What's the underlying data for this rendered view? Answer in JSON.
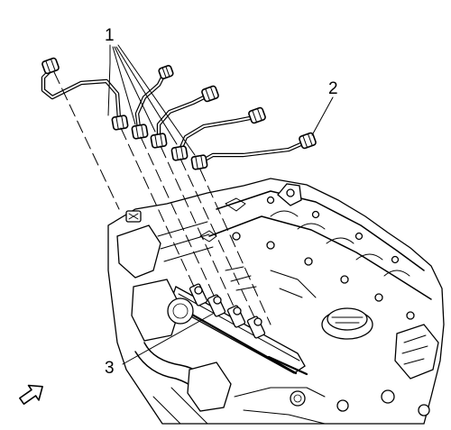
{
  "callouts": [
    {
      "id": "1",
      "label": "1"
    },
    {
      "id": "2",
      "label": "2"
    },
    {
      "id": "3",
      "label": "3"
    }
  ],
  "icons": {
    "orientation_arrow": "view-direction-arrow-icon"
  }
}
